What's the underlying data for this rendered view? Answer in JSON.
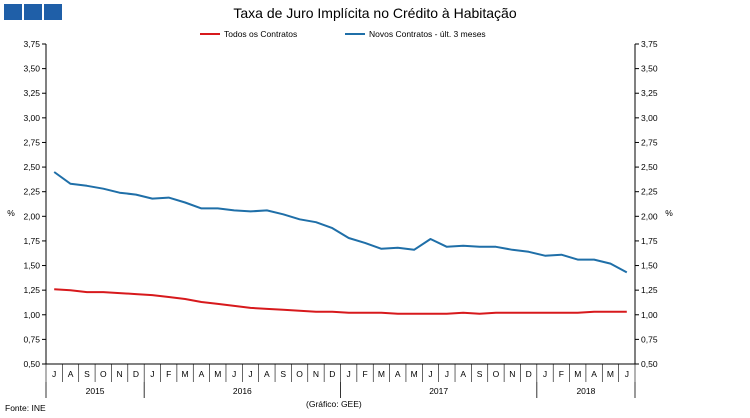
{
  "chart_data": {
    "type": "line",
    "title": "Taxa de Juro Implícita no Crédito à Habitação",
    "ylabel": "%",
    "ylabel_right": "%",
    "ylim": [
      0.5,
      3.75
    ],
    "yticks": [
      "0,50",
      "0,75",
      "1,00",
      "1,25",
      "1,50",
      "1,75",
      "2,00",
      "2,25",
      "2,50",
      "2,75",
      "3,00",
      "3,25",
      "3,50",
      "3,75"
    ],
    "months": [
      "J",
      "A",
      "S",
      "O",
      "N",
      "D",
      "J",
      "F",
      "M",
      "A",
      "M",
      "J",
      "J",
      "A",
      "S",
      "O",
      "N",
      "D",
      "J",
      "F",
      "M",
      "A",
      "M",
      "J",
      "J",
      "A",
      "S",
      "O",
      "N",
      "D",
      "J",
      "F",
      "M",
      "A",
      "M",
      "J"
    ],
    "years": [
      {
        "label": "2015",
        "start": 0,
        "end": 6
      },
      {
        "label": "2016",
        "start": 6,
        "end": 18
      },
      {
        "label": "2017",
        "start": 18,
        "end": 30
      },
      {
        "label": "2018",
        "start": 30,
        "end": 36
      }
    ],
    "series": [
      {
        "name": "Todos os Contratos",
        "color": "#d7191c",
        "values": [
          1.26,
          1.25,
          1.23,
          1.23,
          1.22,
          1.21,
          1.2,
          1.18,
          1.16,
          1.13,
          1.11,
          1.09,
          1.07,
          1.06,
          1.05,
          1.04,
          1.03,
          1.03,
          1.02,
          1.02,
          1.02,
          1.01,
          1.01,
          1.01,
          1.01,
          1.02,
          1.01,
          1.02,
          1.02,
          1.02,
          1.02,
          1.02,
          1.02,
          1.03,
          1.03,
          1.03
        ]
      },
      {
        "name": "Novos Contratos - últ. 3 meses",
        "color": "#1f6fa8",
        "values": [
          2.45,
          2.33,
          2.31,
          2.28,
          2.24,
          2.22,
          2.18,
          2.19,
          2.14,
          2.08,
          2.08,
          2.06,
          2.05,
          2.06,
          2.02,
          1.97,
          1.94,
          1.88,
          1.78,
          1.73,
          1.67,
          1.68,
          1.66,
          1.77,
          1.69,
          1.7,
          1.69,
          1.69,
          1.66,
          1.64,
          1.6,
          1.61,
          1.56,
          1.56,
          1.52,
          1.43
        ]
      }
    ]
  },
  "header": {
    "logo": "logo-squares",
    "logo_color": "#1f5fa8"
  },
  "footer": {
    "source": "Fonte: INE",
    "credit": "(Gráfico: GEE)"
  }
}
